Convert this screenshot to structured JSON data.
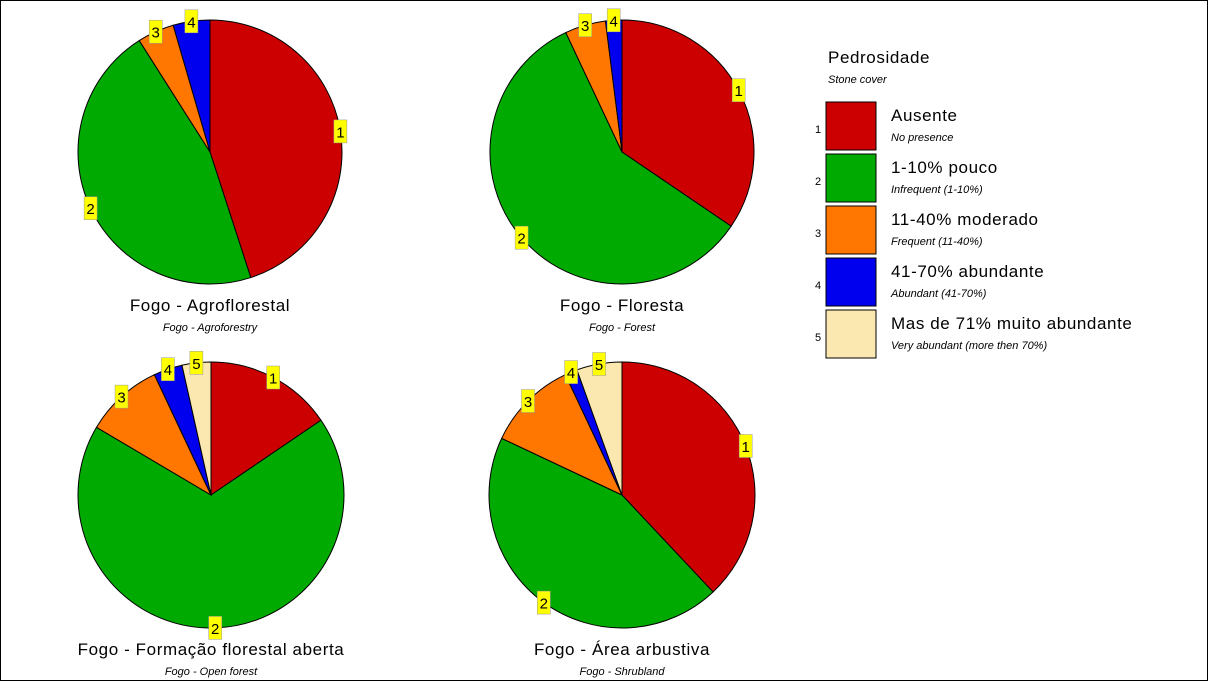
{
  "legend": {
    "title": "Pedrosidade",
    "subtitle": "Stone cover",
    "items": [
      {
        "code": "1",
        "label": "Ausente",
        "sublabel": "No presence",
        "color": "#cc0000"
      },
      {
        "code": "2",
        "label": "1-10% pouco",
        "sublabel": "Infrequent (1-10%)",
        "color": "#00aa00"
      },
      {
        "code": "3",
        "label": "11-40% moderado",
        "sublabel": "Frequent (11-40%)",
        "color": "#ff7700"
      },
      {
        "code": "4",
        "label": "41-70% abundante",
        "sublabel": "Abundant (41-70%)",
        "color": "#0000ee"
      },
      {
        "code": "5",
        "label": "Mas de 71% muito abundante",
        "sublabel": "Very abundant (more then 70%)",
        "color": "#fbe7b0"
      }
    ]
  },
  "label_bg_color": "#ffff00",
  "chart_data": [
    {
      "type": "pie",
      "title": "Fogo - Agroflorestal",
      "subtitle": "Fogo - Agroforestry",
      "slices": [
        {
          "label": "1",
          "value": 45
        },
        {
          "label": "2",
          "value": 46
        },
        {
          "label": "3",
          "value": 4.5
        },
        {
          "label": "4",
          "value": 4.5
        }
      ]
    },
    {
      "type": "pie",
      "title": "Fogo - Floresta",
      "subtitle": "Fogo - Forest",
      "slices": [
        {
          "label": "1",
          "value": 34.5
        },
        {
          "label": "2",
          "value": 58.5
        },
        {
          "label": "3",
          "value": 5
        },
        {
          "label": "4",
          "value": 2
        }
      ]
    },
    {
      "type": "pie",
      "title": "Fogo - Formação florestal aberta",
      "subtitle": "Fogo - Open forest",
      "slices": [
        {
          "label": "1",
          "value": 15.5
        },
        {
          "label": "2",
          "value": 68
        },
        {
          "label": "3",
          "value": 9.5
        },
        {
          "label": "4",
          "value": 3.5
        },
        {
          "label": "5",
          "value": 3.5
        }
      ]
    },
    {
      "type": "pie",
      "title": "Fogo - Área arbustiva",
      "subtitle": "Fogo - Shrubland",
      "slices": [
        {
          "label": "1",
          "value": 38
        },
        {
          "label": "2",
          "value": 44
        },
        {
          "label": "3",
          "value": 11
        },
        {
          "label": "4",
          "value": 1.5
        },
        {
          "label": "5",
          "value": 5.5
        }
      ]
    }
  ]
}
